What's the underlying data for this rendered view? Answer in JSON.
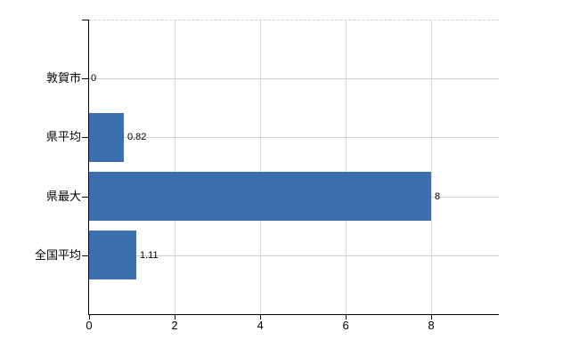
{
  "chart_data": {
    "type": "bar",
    "orientation": "horizontal",
    "title": "",
    "xlabel": "",
    "ylabel": "",
    "categories": [
      "敦賀市",
      "県平均",
      "県最大",
      "全国平均"
    ],
    "values": [
      0,
      0.82,
      8,
      1.11
    ],
    "value_labels": [
      "0",
      "0.82",
      "8",
      "1.11"
    ],
    "x_ticks": [
      0,
      2,
      4,
      6,
      8
    ],
    "x_tick_labels": [
      "0",
      "2",
      "4",
      "6",
      "8"
    ],
    "xlim": [
      0,
      9.58
    ],
    "grid": true,
    "legend": false,
    "colors": {
      "bar": "#3d6fae",
      "axis": "#000000",
      "grid_vertical": "#d9d9d9",
      "grid_horizontal": "#ccd4c7",
      "top_border": "#cfcfcf",
      "text": "#000000",
      "background": "#ffffff"
    }
  }
}
